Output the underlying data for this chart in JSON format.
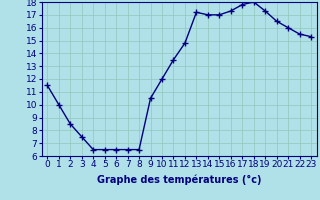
{
  "hours": [
    0,
    1,
    2,
    3,
    4,
    5,
    6,
    7,
    8,
    9,
    10,
    11,
    12,
    13,
    14,
    15,
    16,
    17,
    18,
    19,
    20,
    21,
    22,
    23
  ],
  "temps": [
    11.5,
    10.0,
    8.5,
    7.5,
    6.5,
    6.5,
    6.5,
    6.5,
    6.5,
    10.5,
    12.0,
    13.5,
    14.8,
    17.2,
    17.0,
    17.0,
    17.3,
    17.8,
    18.0,
    17.3,
    16.5,
    16.0,
    15.5,
    15.3
  ],
  "line_color": "#000080",
  "marker": "+",
  "bg_color": "#b0e0e8",
  "grid_color": "#90c8b8",
  "xlabel": "Graphe des températures (°c)",
  "xlabel_color": "#000080",
  "ylabel_min": 6,
  "ylabel_max": 18,
  "ytick_step": 1,
  "xtick_labels": [
    "0",
    "1",
    "2",
    "3",
    "4",
    "5",
    "6",
    "7",
    "8",
    "9",
    "10",
    "11",
    "12",
    "13",
    "14",
    "15",
    "16",
    "17",
    "18",
    "19",
    "20",
    "21",
    "22",
    "23"
  ],
  "axis_label_fontsize": 7,
  "tick_fontsize": 6.5
}
